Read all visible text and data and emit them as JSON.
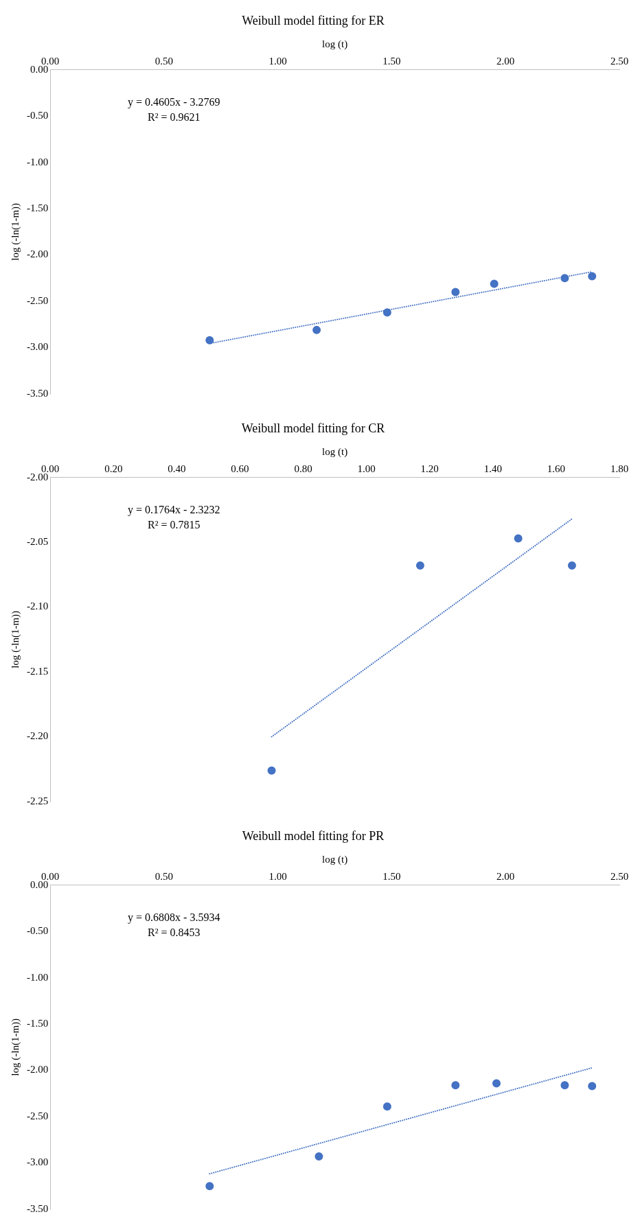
{
  "chart_data": [
    {
      "type": "scatter",
      "title": "Weibull model fitting for ER",
      "xlabel": "log (t)",
      "ylabel": "log (-ln(1-m))",
      "xlim": [
        0,
        2.5
      ],
      "xticks": [
        {
          "value": 0,
          "label": "0.00"
        },
        {
          "value": 0.5,
          "label": "0.50"
        },
        {
          "value": 1,
          "label": "1.00"
        },
        {
          "value": 1.5,
          "label": "1.50"
        },
        {
          "value": 2,
          "label": "2.00"
        },
        {
          "value": 2.5,
          "label": "2.50"
        }
      ],
      "ylim": [
        -3.5,
        0
      ],
      "yticks": [
        {
          "value": 0,
          "label": "0.00"
        },
        {
          "value": -0.5,
          "label": "-0.50"
        },
        {
          "value": -1,
          "label": "-1.00"
        },
        {
          "value": -1.5,
          "label": "-1.50"
        },
        {
          "value": -2,
          "label": "-2.00"
        },
        {
          "value": -2.5,
          "label": "-2.50"
        },
        {
          "value": -3,
          "label": "-3.00"
        },
        {
          "value": -3.5,
          "label": "-3.50"
        }
      ],
      "series": [
        {
          "type": "scatter",
          "color": "#4472c4",
          "marker": "circle",
          "x": [
            0.7,
            1.17,
            1.48,
            1.78,
            1.95,
            2.26,
            2.38
          ],
          "values": [
            -2.92,
            -2.81,
            -2.62,
            -2.4,
            -2.31,
            -2.25,
            -2.23
          ]
        },
        {
          "type": "line",
          "color": "#4472c4",
          "marker": "none",
          "line_style": "dotted",
          "x": [
            0.7,
            2.38
          ],
          "values": [
            -2.955,
            -2.181
          ]
        }
      ],
      "annotations": [
        "y = 0.4605x - 3.2769",
        "R² = 0.9621"
      ]
    },
    {
      "type": "scatter",
      "title": "Weibull model fitting for CR",
      "xlabel": "log (t)",
      "ylabel": "log (-ln(1-m))",
      "xlim": [
        0,
        1.8
      ],
      "xticks": [
        {
          "value": 0,
          "label": "0.00"
        },
        {
          "value": 0.2,
          "label": "0.20"
        },
        {
          "value": 0.4,
          "label": "0.40"
        },
        {
          "value": 0.6,
          "label": "0.60"
        },
        {
          "value": 0.8,
          "label": "0.80"
        },
        {
          "value": 1,
          "label": "1.00"
        },
        {
          "value": 1.2,
          "label": "1.20"
        },
        {
          "value": 1.4,
          "label": "1.40"
        },
        {
          "value": 1.6,
          "label": "1.60"
        },
        {
          "value": 1.8,
          "label": "1.80"
        }
      ],
      "ylim": [
        -2.25,
        -2
      ],
      "yticks": [
        {
          "value": -2,
          "label": "-2.00"
        },
        {
          "value": -2.05,
          "label": "-2.05"
        },
        {
          "value": -2.1,
          "label": "-2.10"
        },
        {
          "value": -2.15,
          "label": "-2.15"
        },
        {
          "value": -2.2,
          "label": "-2.20"
        },
        {
          "value": -2.25,
          "label": "-2.25"
        }
      ],
      "series": [
        {
          "type": "scatter",
          "color": "#4472c4",
          "marker": "circle",
          "x": [
            0.7,
            1.17,
            1.48,
            1.65
          ],
          "values": [
            -2.226,
            -2.068,
            -2.047,
            -2.068
          ]
        },
        {
          "type": "line",
          "color": "#4472c4",
          "marker": "none",
          "line_style": "dotted",
          "x": [
            0.7,
            1.65
          ],
          "values": [
            -2.2,
            -2.032
          ]
        }
      ],
      "annotations": [
        "y = 0.1764x - 2.3232",
        "R² = 0.7815"
      ]
    },
    {
      "type": "scatter",
      "title": "Weibull model fitting for PR",
      "xlabel": "log (t)",
      "ylabel": "log (-ln(1-m))",
      "xlim": [
        0,
        2.5
      ],
      "xticks": [
        {
          "value": 0,
          "label": "0.00"
        },
        {
          "value": 0.5,
          "label": "0.50"
        },
        {
          "value": 1,
          "label": "1.00"
        },
        {
          "value": 1.5,
          "label": "1.50"
        },
        {
          "value": 2,
          "label": "2.00"
        },
        {
          "value": 2.5,
          "label": "2.50"
        }
      ],
      "ylim": [
        -3.5,
        0
      ],
      "yticks": [
        {
          "value": 0,
          "label": "0.00"
        },
        {
          "value": -0.5,
          "label": "-0.50"
        },
        {
          "value": -1,
          "label": "-1.00"
        },
        {
          "value": -1.5,
          "label": "-1.50"
        },
        {
          "value": -2,
          "label": "-2.00"
        },
        {
          "value": -2.5,
          "label": "-2.50"
        },
        {
          "value": -3,
          "label": "-3.00"
        },
        {
          "value": -3.5,
          "label": "-3.50"
        }
      ],
      "series": [
        {
          "type": "scatter",
          "color": "#4472c4",
          "marker": "circle",
          "x": [
            0.7,
            1.18,
            1.48,
            1.78,
            1.96,
            2.26,
            2.38
          ],
          "values": [
            -3.25,
            -2.93,
            -2.39,
            -2.16,
            -2.14,
            -2.16,
            -2.17
          ]
        },
        {
          "type": "line",
          "color": "#4472c4",
          "marker": "none",
          "line_style": "dotted",
          "x": [
            0.7,
            2.38
          ],
          "values": [
            -3.117,
            -1.973
          ]
        }
      ],
      "annotations": [
        "y = 0.6808x - 3.5934",
        "R² = 0.8453"
      ]
    }
  ]
}
